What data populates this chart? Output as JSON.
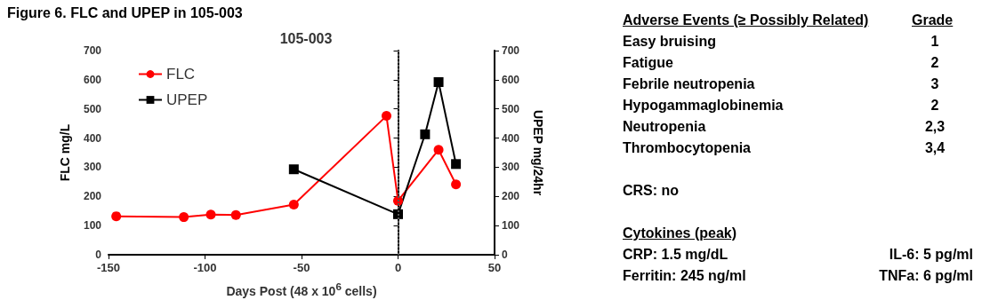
{
  "chart_data": [
    {
      "type": "line",
      "title": "Figure 6. FLC and UPEP in 105-003",
      "subtitle": "105-003",
      "xlabel": "Days Post (48 x 10$^{6}$ cells)",
      "ylabel": "FLC mg/L",
      "y2label": "UPEP mg/24hr",
      "series": [
        {
          "name": "FLC",
          "color": "#ff0000",
          "marker": "circle",
          "x": [
            -146,
            -111,
            -97,
            -84,
            -54,
            -6,
            0,
            21,
            30
          ],
          "values": [
            132,
            129,
            138,
            136,
            172,
            476,
            185,
            360,
            241
          ]
        },
        {
          "name": "UPEP",
          "color": "#000000",
          "marker": "square",
          "axis": "y2",
          "x": [
            -54,
            0,
            14,
            21,
            30
          ],
          "values": [
            293,
            139,
            413,
            592,
            311
          ]
        }
      ],
      "xlim": [
        -150,
        50
      ],
      "xticks": [
        -150,
        -100,
        -50,
        0,
        50
      ],
      "ylim": [
        0,
        700
      ],
      "yticks": [
        0,
        100,
        200,
        300,
        400,
        500,
        600,
        700
      ],
      "y2lim": [
        0,
        700
      ],
      "y2ticks": [
        0,
        100,
        200,
        300,
        400,
        500,
        600,
        700
      ],
      "ref_lines": [
        {
          "axis": "x",
          "value": 0,
          "line_style": "dotted",
          "color": "#555555"
        }
      ],
      "grid": false,
      "legend": "top left",
      "line_style": "solid"
    },
    {
      "type": "other",
      "title": "Adverse Events (≥ Possibly Related)",
      "annotations": [
        "Grade",
        "Easy bruising",
        "1",
        "Fatigue",
        "2",
        "Febrile neutropenia",
        "3",
        "Hypogammaglobinemia",
        "2",
        "Neutropenia",
        "2,3",
        "Thrombocytopenia",
        "3,4",
        "CRS: no",
        "Cytokines (peak)",
        "CRP: 1.5 mg/dL",
        "IL-6: 5 pg/ml",
        "Ferritin: 245 ng/ml",
        "TNFa: 6 pg/ml"
      ]
    }
  ]
}
